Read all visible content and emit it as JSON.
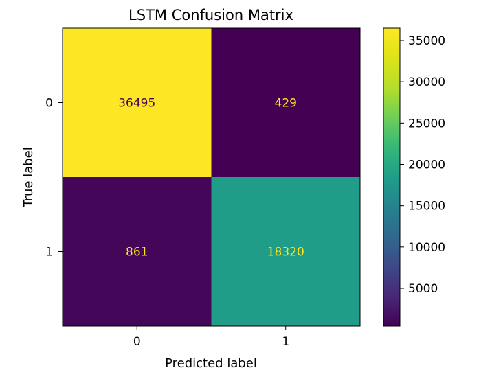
{
  "chart_data": {
    "type": "heatmap",
    "title": "LSTM Confusion Matrix",
    "xlabel": "Predicted label",
    "ylabel": "True label",
    "x_tick_labels": [
      "0",
      "1"
    ],
    "y_tick_labels": [
      "0",
      "1"
    ],
    "matrix": [
      [
        36495,
        429
      ],
      [
        861,
        18320
      ]
    ],
    "cell_labels": [
      [
        "36495",
        "429"
      ],
      [
        "861",
        "18320"
      ]
    ],
    "colormap": "viridis",
    "colorbar": {
      "vmin": 429,
      "vmax": 36495,
      "ticks": [
        5000,
        10000,
        15000,
        20000,
        25000,
        30000,
        35000
      ],
      "tick_labels": [
        "5000",
        "10000",
        "15000",
        "20000",
        "25000",
        "30000",
        "35000"
      ]
    },
    "colors": {
      "low": "#440154",
      "high": "#fde725",
      "dark_text": "#440154",
      "light_text": "#fde725"
    },
    "grid": false
  }
}
